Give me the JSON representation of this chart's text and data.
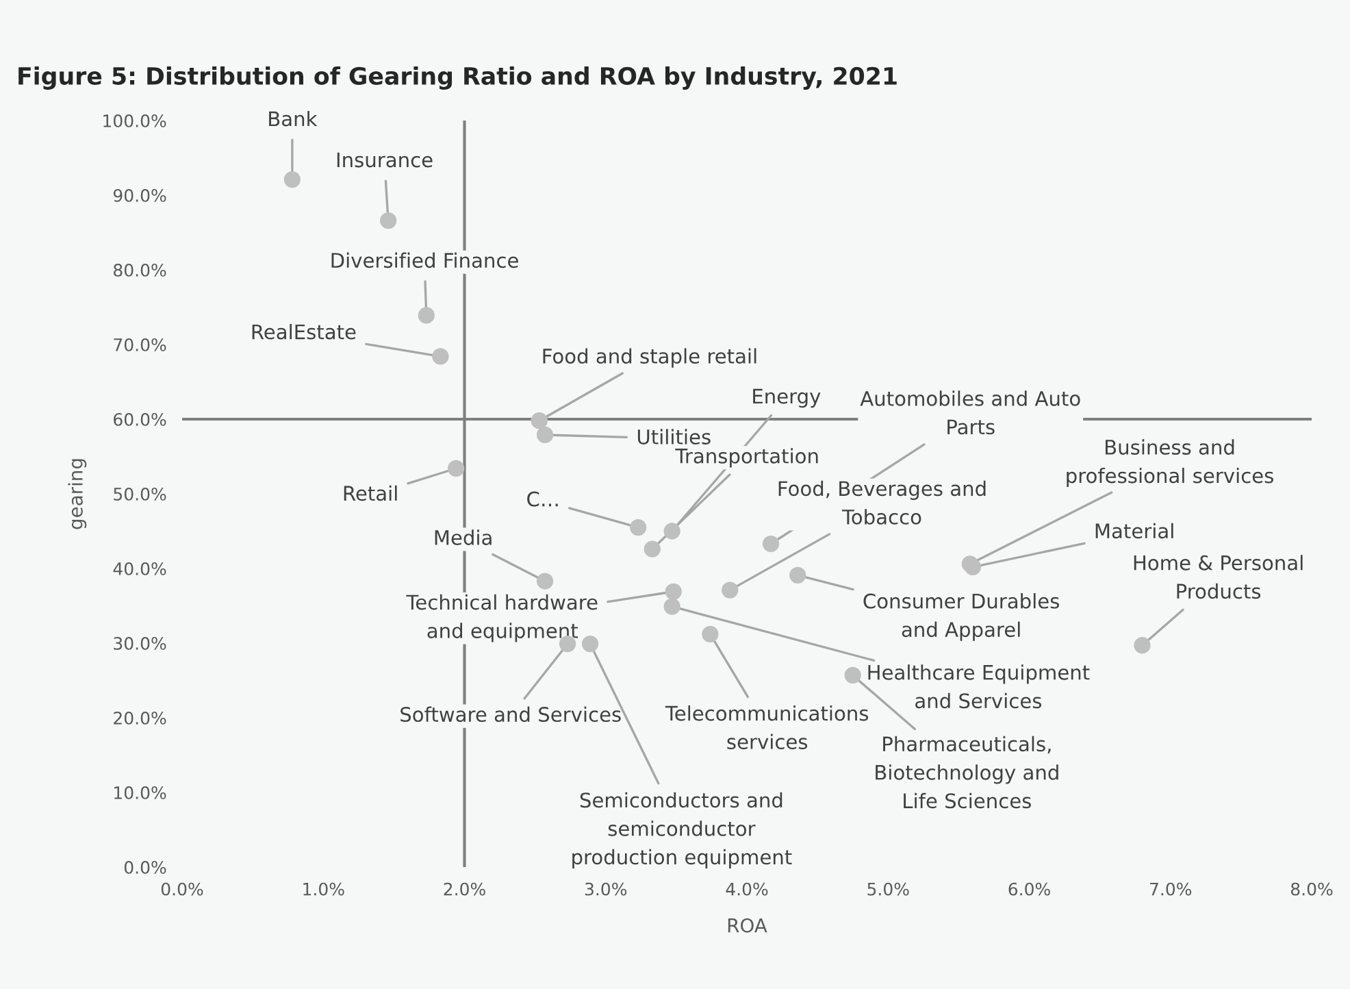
{
  "chart_data": {
    "type": "scatter",
    "title": "Figure 5: Distribution of Gearing Ratio and ROA by Industry, 2021",
    "xlabel": "ROA",
    "ylabel": "gearing",
    "series": [
      {
        "color": "#bfbfbf",
        "x": [
          0.78,
          1.46,
          1.73,
          1.83,
          1.94,
          2.53,
          2.57,
          3.23,
          3.47,
          3.33,
          4.17,
          5.58,
          5.6,
          2.57,
          3.48,
          3.88,
          4.36,
          3.47,
          3.74,
          4.75,
          2.73,
          2.89,
          6.8
        ],
        "values": [
          92.1,
          86.6,
          73.9,
          68.4,
          53.4,
          59.8,
          57.9,
          45.5,
          45.0,
          42.6,
          43.3,
          40.6,
          40.2,
          38.3,
          36.9,
          37.1,
          39.1,
          34.9,
          31.2,
          25.7,
          29.9,
          29.9,
          29.7
        ]
      }
    ],
    "annotations": [
      {
        "text": "Bank",
        "x": 0.78,
        "y": 92.1
      },
      {
        "text": "Insurance",
        "x": 1.46,
        "y": 86.6
      },
      {
        "text": "Diversified Finance",
        "x": 1.73,
        "y": 73.9
      },
      {
        "text": "RealEstate",
        "x": 1.83,
        "y": 68.4
      },
      {
        "text": "Retail",
        "x": 1.94,
        "y": 53.4
      },
      {
        "text": "Food and staple retail",
        "x": 2.53,
        "y": 59.8
      },
      {
        "text": "Utilities",
        "x": 2.57,
        "y": 57.9
      },
      {
        "text": "C…",
        "x": 3.23,
        "y": 45.5
      },
      {
        "text": "Energy",
        "x": 3.47,
        "y": 45.0
      },
      {
        "text": "Transportation",
        "x": 3.33,
        "y": 42.6
      },
      {
        "text": "Automobiles and Auto\nParts",
        "x": 4.17,
        "y": 43.3
      },
      {
        "text": "Business and\nprofessional services",
        "x": 5.58,
        "y": 40.6
      },
      {
        "text": "Material",
        "x": 5.6,
        "y": 40.2
      },
      {
        "text": "Media",
        "x": 2.57,
        "y": 38.3
      },
      {
        "text": "Technical hardware\nand equipment",
        "x": 3.48,
        "y": 36.9
      },
      {
        "text": "Food, Beverages and\nTobacco",
        "x": 3.88,
        "y": 37.1
      },
      {
        "text": "Consumer Durables\nand Apparel",
        "x": 4.36,
        "y": 39.1
      },
      {
        "text": "Healthcare Equipment\nand Services",
        "x": 3.47,
        "y": 34.9
      },
      {
        "text": "Telecommunications\nservices",
        "x": 3.74,
        "y": 31.2
      },
      {
        "text": "Pharmaceuticals,\nBiotechnology and\nLife Sciences",
        "x": 4.75,
        "y": 25.7
      },
      {
        "text": "Software and Services",
        "x": 2.73,
        "y": 29.9
      },
      {
        "text": "Semiconductors and\nsemiconductor\nproduction equipment",
        "x": 2.89,
        "y": 29.9
      },
      {
        "text": "Home & Personal\nProducts",
        "x": 6.8,
        "y": 29.7
      }
    ],
    "xlim": [
      0,
      8
    ],
    "ylim": [
      0,
      100
    ],
    "xticks": [
      {
        "value": 0,
        "label": "0.0%"
      },
      {
        "value": 1,
        "label": "1.0%"
      },
      {
        "value": 2,
        "label": "2.0%"
      },
      {
        "value": 3,
        "label": "3.0%"
      },
      {
        "value": 4,
        "label": "4.0%"
      },
      {
        "value": 5,
        "label": "5.0%"
      },
      {
        "value": 6,
        "label": "6.0%"
      },
      {
        "value": 7,
        "label": "7.0%"
      },
      {
        "value": 8,
        "label": "8.0%"
      }
    ],
    "yticks": [
      {
        "value": 0,
        "label": "0.0%"
      },
      {
        "value": 10,
        "label": "10.0%"
      },
      {
        "value": 20,
        "label": "20.0%"
      },
      {
        "value": 30,
        "label": "30.0%"
      },
      {
        "value": 40,
        "label": "40.0%"
      },
      {
        "value": 50,
        "label": "50.0%"
      },
      {
        "value": 60,
        "label": "60.0%"
      },
      {
        "value": 70,
        "label": "70.0%"
      },
      {
        "value": 80,
        "label": "80.0%"
      },
      {
        "value": 90,
        "label": "90.0%"
      },
      {
        "value": 100,
        "label": "100.0%"
      }
    ],
    "ref_lines": [
      {
        "axis": "x",
        "value": 2,
        "color": "#7f7f7f"
      },
      {
        "axis": "y",
        "value": 60,
        "color": "#7f7f7f"
      }
    ],
    "marker": "circle",
    "grid": false,
    "legend": false
  }
}
